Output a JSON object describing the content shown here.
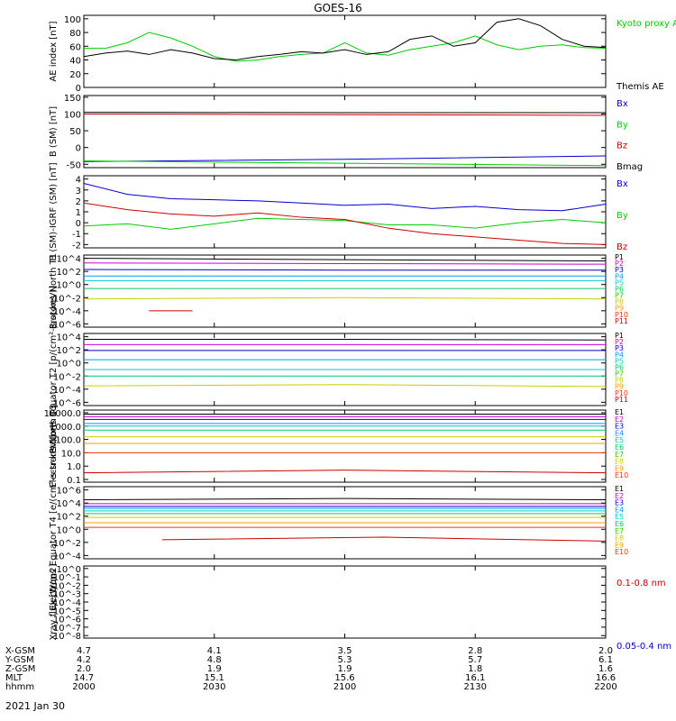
{
  "title": "GOES-16",
  "date_label": "2021 Jan 30",
  "colors": {
    "black": "#000000",
    "green": "#00cc00",
    "blue": "#0000cc",
    "red": "#cc0000",
    "channels": [
      "#000000",
      "#cc00cc",
      "#0000cc",
      "#0099ff",
      "#00cccc",
      "#00cc66",
      "#33cc00",
      "#cccc00",
      "#ff9900",
      "#ff3300",
      "#cc0000"
    ]
  },
  "x_axis": {
    "ticks": [
      "2000",
      "2030",
      "2100",
      "2130",
      "2200"
    ],
    "rows": [
      {
        "label": "X-GSM",
        "values": [
          "4.7",
          "4.1",
          "3.5",
          "2.8",
          "2.0"
        ]
      },
      {
        "label": "Y-GSM",
        "values": [
          "4.2",
          "4.8",
          "5.3",
          "5.7",
          "6.1"
        ]
      },
      {
        "label": "Z-GSM",
        "values": [
          "2.0",
          "1.9",
          "1.9",
          "1.8",
          "1.6"
        ]
      },
      {
        "label": "MLT",
        "values": [
          "14.7",
          "15.1",
          "15.6",
          "16.1",
          "16.6"
        ]
      },
      {
        "label": "hhmm",
        "values": [
          "2000",
          "2030",
          "2100",
          "2130",
          "2200"
        ]
      }
    ]
  },
  "chart_data": [
    {
      "type": "line",
      "ylabel": "AE index [nT]",
      "yticks": [
        "0",
        "20",
        "40",
        "60",
        "80",
        "100"
      ],
      "ylim": [
        0,
        105
      ],
      "legend": [
        "Kyoto proxy AE",
        "Themis AE"
      ],
      "series": [
        {
          "name": "Kyoto proxy AE",
          "color": "green",
          "x": [
            0,
            5,
            10,
            15,
            20,
            25,
            30,
            35,
            40,
            45,
            50,
            55,
            60,
            65,
            70,
            75,
            80,
            85,
            90,
            95,
            100,
            105,
            110,
            115,
            120
          ],
          "values": [
            57,
            57,
            65,
            80,
            72,
            60,
            45,
            38,
            40,
            45,
            48,
            50,
            65,
            50,
            47,
            55,
            60,
            65,
            75,
            62,
            55,
            60,
            62,
            58,
            57
          ]
        },
        {
          "name": "Themis AE",
          "color": "black",
          "x": [
            0,
            5,
            10,
            15,
            20,
            25,
            30,
            35,
            40,
            45,
            50,
            55,
            60,
            65,
            70,
            75,
            80,
            85,
            90,
            95,
            100,
            105,
            110,
            115,
            120
          ],
          "values": [
            45,
            50,
            53,
            48,
            55,
            50,
            42,
            40,
            45,
            48,
            52,
            50,
            55,
            48,
            52,
            70,
            75,
            60,
            65,
            95,
            100,
            90,
            70,
            60,
            58
          ]
        }
      ]
    },
    {
      "type": "line",
      "ylabel": "B (SM) [nT]",
      "yticks": [
        "-50",
        "0",
        "50",
        "100",
        "150"
      ],
      "ylim": [
        -60,
        155
      ],
      "legend": [
        "Bx",
        "By",
        "Bz",
        "Bmag"
      ],
      "series": [
        {
          "name": "Bmag",
          "color": "black",
          "x": [
            0,
            60,
            120
          ],
          "values": [
            105,
            104,
            104
          ]
        },
        {
          "name": "Bz",
          "color": "red",
          "x": [
            0,
            60,
            120
          ],
          "values": [
            100,
            98,
            96
          ]
        },
        {
          "name": "Bx",
          "color": "blue",
          "x": [
            0,
            60,
            120
          ],
          "values": [
            -42,
            -35,
            -25
          ]
        },
        {
          "name": "By",
          "color": "green",
          "x": [
            0,
            60,
            120
          ],
          "values": [
            -40,
            -47,
            -54
          ]
        }
      ]
    },
    {
      "type": "line",
      "ylabel": "B (SM)-IGRF (SM) [nT]",
      "yticks": [
        "-2",
        "-1",
        "0",
        "1",
        "2",
        "3",
        "4"
      ],
      "ylim": [
        -2.3,
        4.3
      ],
      "legend": [
        "Bx",
        "By",
        "Bz"
      ],
      "series": [
        {
          "name": "Bx",
          "color": "blue",
          "x": [
            0,
            10,
            20,
            30,
            40,
            50,
            60,
            70,
            80,
            90,
            100,
            110,
            120
          ],
          "values": [
            3.6,
            2.6,
            2.2,
            2.1,
            2.0,
            1.8,
            1.6,
            1.7,
            1.3,
            1.5,
            1.2,
            1.1,
            1.7
          ]
        },
        {
          "name": "By",
          "color": "green",
          "x": [
            0,
            10,
            20,
            30,
            40,
            50,
            60,
            70,
            80,
            90,
            100,
            110,
            120
          ],
          "values": [
            -0.3,
            -0.1,
            -0.6,
            -0.1,
            0.4,
            0.3,
            0.2,
            -0.2,
            -0.2,
            -0.5,
            0.0,
            0.3,
            0.0
          ]
        },
        {
          "name": "Bz",
          "color": "red",
          "x": [
            0,
            10,
            20,
            30,
            40,
            50,
            60,
            70,
            80,
            90,
            100,
            110,
            120
          ],
          "values": [
            1.8,
            1.2,
            0.8,
            0.6,
            0.9,
            0.5,
            0.3,
            -0.5,
            -1.0,
            -1.3,
            -1.6,
            -1.9,
            -2.0
          ]
        }
      ]
    },
    {
      "type": "line",
      "scale": "log",
      "ylabel": "Protons North T1",
      "yticks": [
        "10^-6",
        "10^-4",
        "10^-2",
        "10^0",
        "10^2",
        "10^4"
      ],
      "ylim": [
        -6.5,
        4.5
      ],
      "legend": [
        "P1",
        "P2",
        "P3",
        "P4",
        "P5",
        "P6",
        "P7",
        "P8",
        "P9",
        "P10",
        "P11"
      ],
      "series": [
        {
          "name": "P1",
          "color": "0",
          "log_values": [
            4.0,
            3.8,
            3.6
          ]
        },
        {
          "name": "P2",
          "color": "1",
          "log_values": [
            3.3,
            3.2,
            3.1
          ]
        },
        {
          "name": "P3",
          "color": "2",
          "log_values": [
            2.3,
            2.2,
            2.2
          ]
        },
        {
          "name": "P4",
          "color": "3",
          "log_values": [
            1.3,
            1.3,
            1.3
          ]
        },
        {
          "name": "P5",
          "color": "4",
          "log_values": [
            0.6,
            0.6,
            0.6
          ]
        },
        {
          "name": "P6",
          "color": "5",
          "log_values": [
            -0.6,
            -0.6,
            -0.6
          ]
        },
        {
          "name": "P7",
          "color": "7",
          "log_values": [
            -2.2,
            -2.0,
            -2.2
          ]
        },
        {
          "name": "P10",
          "color": "10",
          "log_values": [
            -4.0
          ],
          "segment": [
            15,
            25
          ]
        }
      ]
    },
    {
      "type": "line",
      "scale": "log",
      "ylabel": "Protons Equator T2 [p/(cm²-s-sr-keV)]",
      "yticks": [
        "10^-6",
        "10^-4",
        "10^-2",
        "10^0",
        "10^2",
        "10^4"
      ],
      "ylim": [
        -6.5,
        4.5
      ],
      "legend": [
        "P1",
        "P2",
        "P3",
        "P4",
        "P5",
        "P6",
        "P7",
        "P8",
        "P9",
        "P10",
        "P11"
      ],
      "series": [
        {
          "name": "P1",
          "color": "0",
          "log_values": [
            3.6,
            3.6,
            3.5
          ]
        },
        {
          "name": "P2",
          "color": "1",
          "log_values": [
            2.8,
            2.8,
            2.8
          ]
        },
        {
          "name": "P3",
          "color": "2",
          "log_values": [
            1.9,
            1.9,
            1.9
          ]
        },
        {
          "name": "P4",
          "color": "3",
          "log_values": [
            0.5,
            0.5,
            0.5
          ]
        },
        {
          "name": "P5",
          "color": "4",
          "log_values": [
            -1.0,
            -1.0,
            -1.0
          ]
        },
        {
          "name": "P6",
          "color": "5",
          "log_values": [
            -2.0,
            -2.0,
            -2.0
          ]
        },
        {
          "name": "P7",
          "color": "7",
          "log_values": [
            -3.5,
            -3.3,
            -3.6
          ]
        }
      ]
    },
    {
      "type": "line",
      "scale": "log",
      "ylabel": "Electrons North T3",
      "yticks": [
        "0.1",
        "1.0",
        "10.0",
        "100.0",
        "1000.0",
        "10000.0"
      ],
      "ylim": [
        -1.2,
        4.2
      ],
      "legend": [
        "E1",
        "E2",
        "E3",
        "E4",
        "E5",
        "E6",
        "E7",
        "E8",
        "E9",
        "E10"
      ],
      "series": [
        {
          "name": "E1",
          "color": "0",
          "log_values": [
            3.9,
            3.9,
            3.9
          ]
        },
        {
          "name": "E2",
          "color": "1",
          "log_values": [
            3.7,
            3.7,
            3.7
          ]
        },
        {
          "name": "E3",
          "color": "2",
          "log_values": [
            3.5,
            3.5,
            3.5
          ]
        },
        {
          "name": "E4",
          "color": "3",
          "log_values": [
            3.2,
            3.2,
            3.2
          ]
        },
        {
          "name": "E5",
          "color": "4",
          "log_values": [
            3.0,
            3.0,
            3.0
          ]
        },
        {
          "name": "E6",
          "color": "5",
          "log_values": [
            2.7,
            2.7,
            2.7
          ]
        },
        {
          "name": "E7",
          "color": "7",
          "log_values": [
            2.2,
            2.2,
            2.2
          ]
        },
        {
          "name": "E8",
          "color": "8",
          "log_values": [
            1.7,
            1.7,
            1.7
          ]
        },
        {
          "name": "E9",
          "color": "9",
          "log_values": [
            1.0,
            1.0,
            1.0
          ]
        },
        {
          "name": "E10",
          "color": "10",
          "log_values": [
            -0.5,
            -0.3,
            -0.5
          ]
        }
      ]
    },
    {
      "type": "line",
      "scale": "log",
      "ylabel": "Electrons Equator T4 [e/(cm²-s-sr-keV)]",
      "yticks": [
        "10^-4",
        "10^-2",
        "10^0",
        "10^2",
        "10^4",
        "10^6"
      ],
      "ylim": [
        -4.5,
        6.5
      ],
      "legend": [
        "E1",
        "E2",
        "E3",
        "E4",
        "E5",
        "E6",
        "E7",
        "E8",
        "E9",
        "E10"
      ],
      "series": [
        {
          "name": "E1",
          "color": "0",
          "log_values": [
            4.5,
            4.7,
            4.5
          ]
        },
        {
          "name": "E2",
          "color": "1",
          "log_values": [
            3.9,
            3.9,
            3.9
          ]
        },
        {
          "name": "E3",
          "color": "2",
          "log_values": [
            3.5,
            3.5,
            3.5
          ]
        },
        {
          "name": "E4",
          "color": "3",
          "log_values": [
            3.2,
            3.2,
            3.2
          ]
        },
        {
          "name": "E5",
          "color": "4",
          "log_values": [
            2.8,
            2.8,
            2.8
          ]
        },
        {
          "name": "E6",
          "color": "5",
          "log_values": [
            2.4,
            2.4,
            2.4
          ]
        },
        {
          "name": "E7",
          "color": "7",
          "log_values": [
            1.8,
            1.8,
            1.8
          ]
        },
        {
          "name": "E8",
          "color": "8",
          "log_values": [
            1.0,
            1.0,
            1.0
          ]
        },
        {
          "name": "E9",
          "color": "9",
          "log_values": [
            0.3,
            0.3,
            0.3
          ]
        },
        {
          "name": "E10",
          "color": "10",
          "log_values": [
            -1.6,
            -1.2,
            -1.8
          ],
          "segment": [
            18,
            120
          ]
        }
      ]
    },
    {
      "type": "line",
      "scale": "log",
      "ylabel": "Xray flux [W/m2]",
      "yticks": [
        "10^-8",
        "10^-7",
        "10^-6",
        "10^-5",
        "10^-4",
        "10^-3",
        "10^-2",
        "10^-1",
        "10^0"
      ],
      "ylim": [
        -8.3,
        0.3
      ],
      "legend": [
        "0.1-0.8 nm",
        "0.05-0.4 nm"
      ],
      "series": []
    }
  ]
}
